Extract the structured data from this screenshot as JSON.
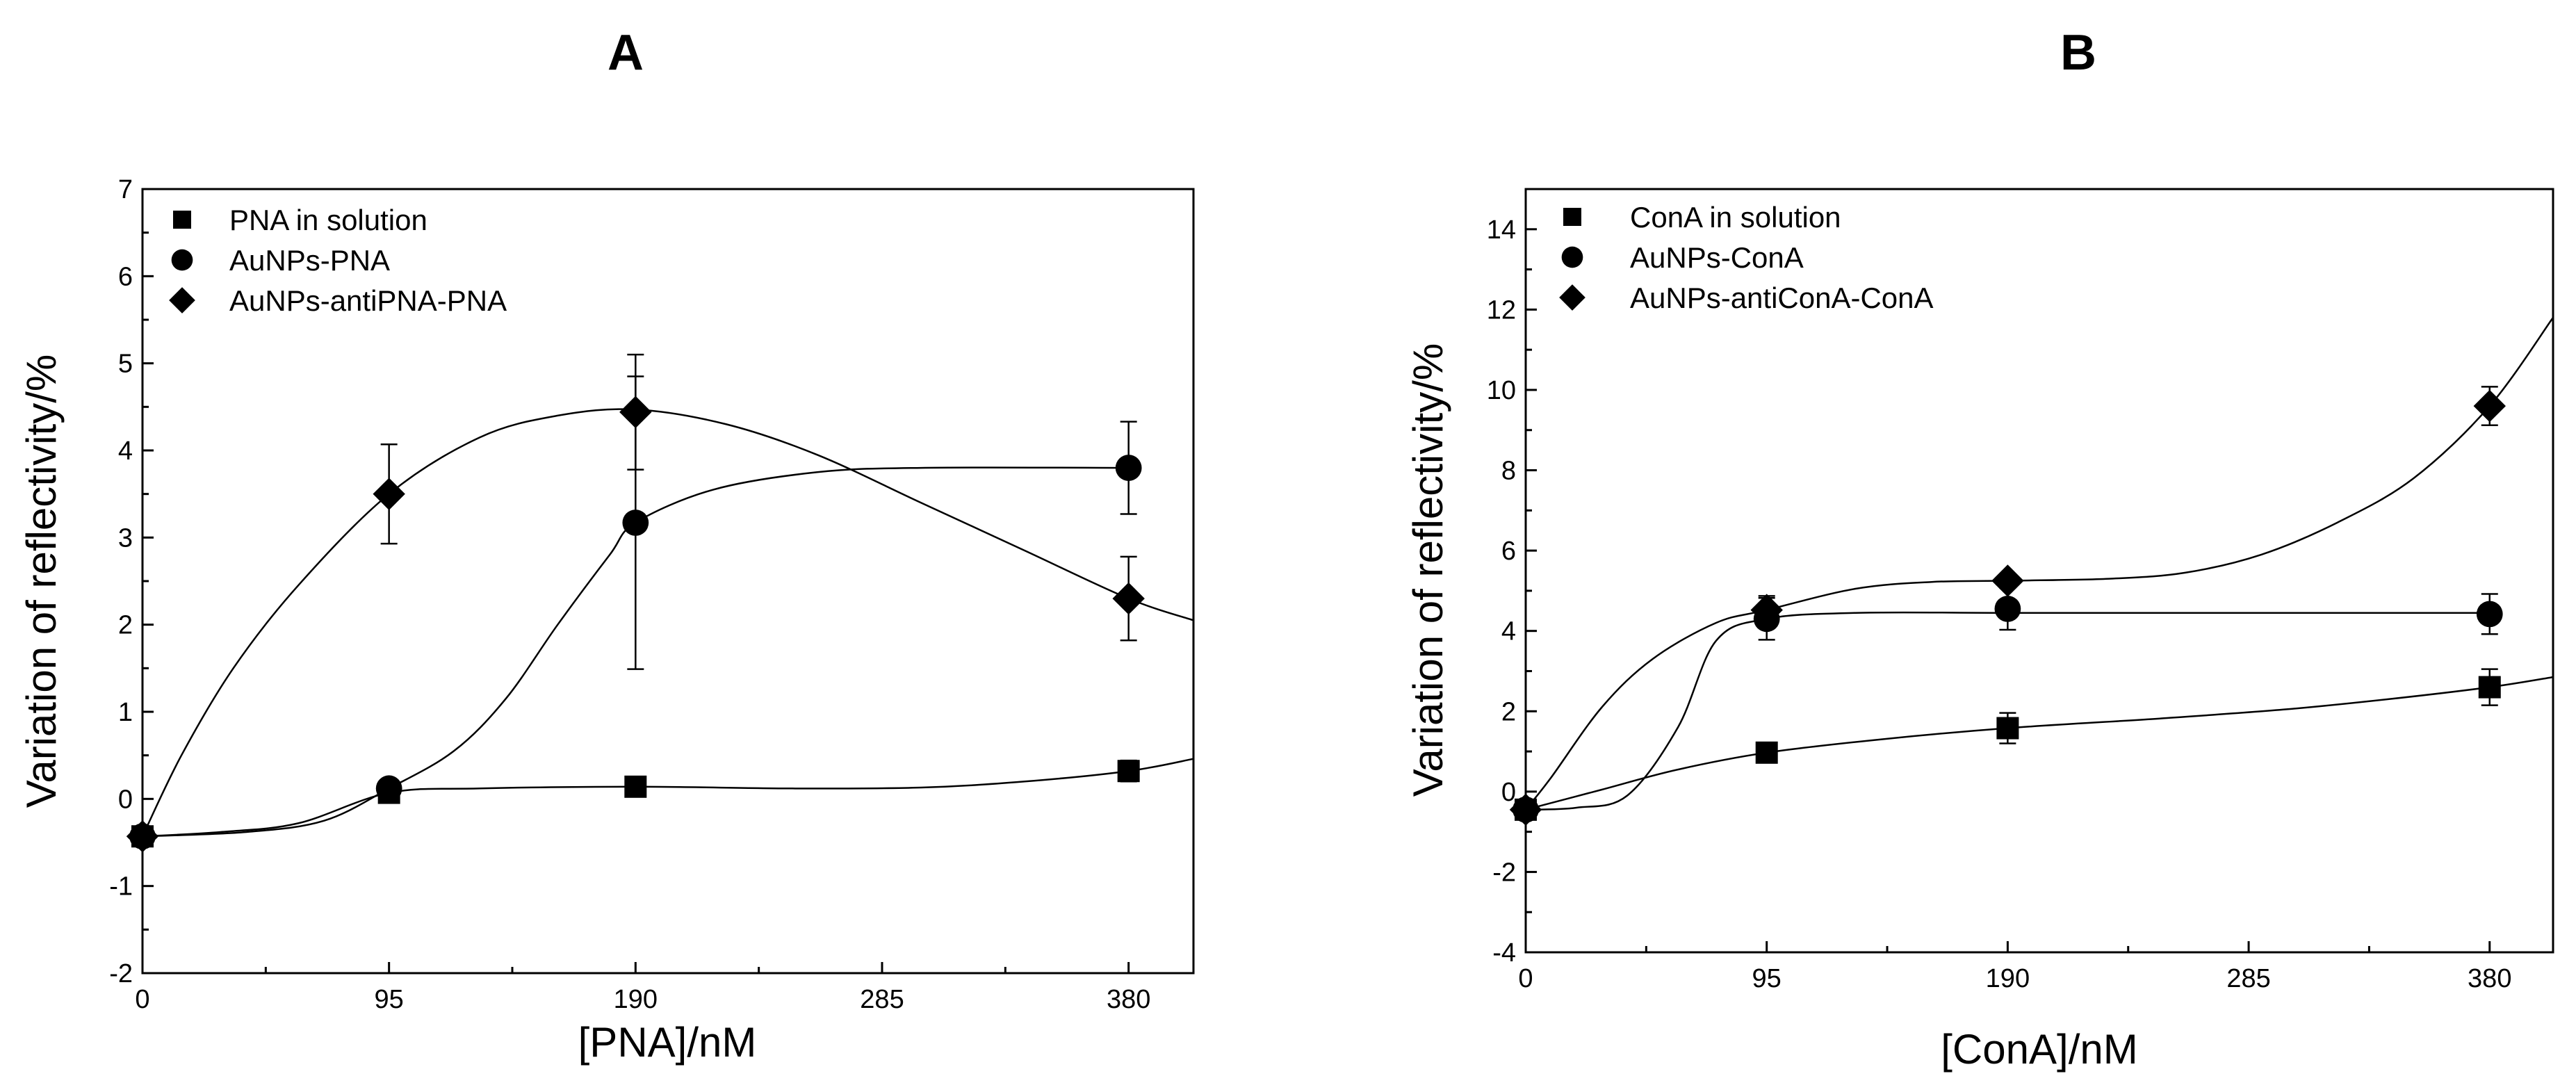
{
  "chart_data": [
    {
      "panel": "A",
      "type": "scatter",
      "title": "A",
      "xlabel": "[PNA]/nM",
      "ylabel": "Variation of reflectivity/%",
      "xlim": [
        0,
        405
      ],
      "ylim": [
        -2,
        7
      ],
      "xticks": [
        0,
        95,
        190,
        285,
        380
      ],
      "yticks": [
        -2,
        -1,
        0,
        1,
        2,
        3,
        4,
        5,
        6,
        7
      ],
      "grid": false,
      "legend_position": "top-left",
      "series": [
        {
          "name": "PNA in solution",
          "marker": "square",
          "points": [
            {
              "x": 0,
              "y": -0.43,
              "err": 0
            },
            {
              "x": 95,
              "y": 0.07,
              "err": 0
            },
            {
              "x": 190,
              "y": 0.14,
              "err": 0
            },
            {
              "x": 380,
              "y": 0.32,
              "err": 0.12
            }
          ],
          "fit": [
            [
              0,
              -0.43
            ],
            [
              30,
              -0.38
            ],
            [
              60,
              -0.28
            ],
            [
              95,
              0.07
            ],
            [
              130,
              0.12
            ],
            [
              190,
              0.14
            ],
            [
              250,
              0.12
            ],
            [
              300,
              0.13
            ],
            [
              340,
              0.2
            ],
            [
              380,
              0.32
            ],
            [
              405,
              0.46
            ]
          ]
        },
        {
          "name": "AuNPs-PNA",
          "marker": "circle",
          "points": [
            {
              "x": 0,
              "y": -0.43,
              "err": 0
            },
            {
              "x": 95,
              "y": 0.12,
              "err": 0
            },
            {
              "x": 190,
              "y": 3.17,
              "err": 1.68
            },
            {
              "x": 380,
              "y": 3.8,
              "err": 0.53
            }
          ],
          "fit": [
            [
              0,
              -0.43
            ],
            [
              40,
              -0.38
            ],
            [
              70,
              -0.25
            ],
            [
              95,
              0.12
            ],
            [
              120,
              0.55
            ],
            [
              140,
              1.15
            ],
            [
              160,
              2.0
            ],
            [
              180,
              2.8
            ],
            [
              190,
              3.17
            ],
            [
              220,
              3.55
            ],
            [
              260,
              3.75
            ],
            [
              300,
              3.8
            ],
            [
              380,
              3.8
            ]
          ]
        },
        {
          "name": "AuNPs-antiPNA-PNA",
          "marker": "diamond",
          "points": [
            {
              "x": 0,
              "y": -0.43,
              "err": 0
            },
            {
              "x": 95,
              "y": 3.5,
              "err": 0.57
            },
            {
              "x": 190,
              "y": 4.44,
              "err": 0.66
            },
            {
              "x": 380,
              "y": 2.3,
              "err": 0.48
            }
          ],
          "fit": [
            [
              0,
              -0.43
            ],
            [
              15,
              0.5
            ],
            [
              35,
              1.5
            ],
            [
              60,
              2.45
            ],
            [
              95,
              3.5
            ],
            [
              130,
              4.15
            ],
            [
              160,
              4.4
            ],
            [
              190,
              4.47
            ],
            [
              225,
              4.3
            ],
            [
              260,
              3.95
            ],
            [
              300,
              3.4
            ],
            [
              340,
              2.85
            ],
            [
              380,
              2.3
            ],
            [
              405,
              2.05
            ]
          ]
        }
      ]
    },
    {
      "panel": "B",
      "type": "scatter",
      "title": "B",
      "xlabel": "[ConA]/nM",
      "ylabel": "Variation of reflectivity/%",
      "xlim": [
        0,
        405
      ],
      "ylim": [
        -4,
        15
      ],
      "xticks": [
        0,
        95,
        190,
        285,
        380
      ],
      "yticks": [
        -4,
        -2,
        0,
        2,
        4,
        6,
        8,
        10,
        12,
        14
      ],
      "grid": false,
      "legend_position": "top-left",
      "series": [
        {
          "name": "ConA in solution",
          "marker": "square",
          "points": [
            {
              "x": 0,
              "y": -0.45,
              "err": 0
            },
            {
              "x": 95,
              "y": 0.97,
              "err": 0
            },
            {
              "x": 190,
              "y": 1.58,
              "err": 0.38
            },
            {
              "x": 380,
              "y": 2.6,
              "err": 0.45
            }
          ],
          "fit": [
            [
              0,
              -0.45
            ],
            [
              30,
              0.05
            ],
            [
              60,
              0.55
            ],
            [
              95,
              0.97
            ],
            [
              140,
              1.3
            ],
            [
              190,
              1.58
            ],
            [
              250,
              1.82
            ],
            [
              300,
              2.05
            ],
            [
              340,
              2.3
            ],
            [
              380,
              2.6
            ],
            [
              405,
              2.85
            ]
          ]
        },
        {
          "name": "AuNPs-ConA",
          "marker": "circle",
          "points": [
            {
              "x": 0,
              "y": -0.45,
              "err": 0
            },
            {
              "x": 95,
              "y": 4.3,
              "err": 0.52
            },
            {
              "x": 190,
              "y": 4.55,
              "err": 0.52
            },
            {
              "x": 380,
              "y": 4.42,
              "err": 0.5
            }
          ],
          "fit": [
            [
              0,
              -0.45
            ],
            [
              20,
              -0.4
            ],
            [
              40,
              -0.1
            ],
            [
              60,
              1.6
            ],
            [
              75,
              3.75
            ],
            [
              95,
              4.3
            ],
            [
              130,
              4.45
            ],
            [
              190,
              4.45
            ],
            [
              260,
              4.45
            ],
            [
              380,
              4.45
            ]
          ]
        },
        {
          "name": "AuNPs-antiConA-ConA",
          "marker": "diamond",
          "points": [
            {
              "x": 0,
              "y": -0.45,
              "err": 0
            },
            {
              "x": 95,
              "y": 4.52,
              "err": 0.35
            },
            {
              "x": 190,
              "y": 5.25,
              "err": 0
            },
            {
              "x": 380,
              "y": 9.6,
              "err": 0.48
            }
          ],
          "fit": [
            [
              0,
              -0.45
            ],
            [
              10,
              0.35
            ],
            [
              30,
              2.1
            ],
            [
              50,
              3.3
            ],
            [
              75,
              4.2
            ],
            [
              95,
              4.52
            ],
            [
              130,
              5.05
            ],
            [
              160,
              5.22
            ],
            [
              190,
              5.25
            ],
            [
              230,
              5.3
            ],
            [
              260,
              5.45
            ],
            [
              290,
              5.9
            ],
            [
              320,
              6.7
            ],
            [
              350,
              7.8
            ],
            [
              380,
              9.6
            ],
            [
              405,
              11.8
            ]
          ]
        }
      ]
    }
  ]
}
